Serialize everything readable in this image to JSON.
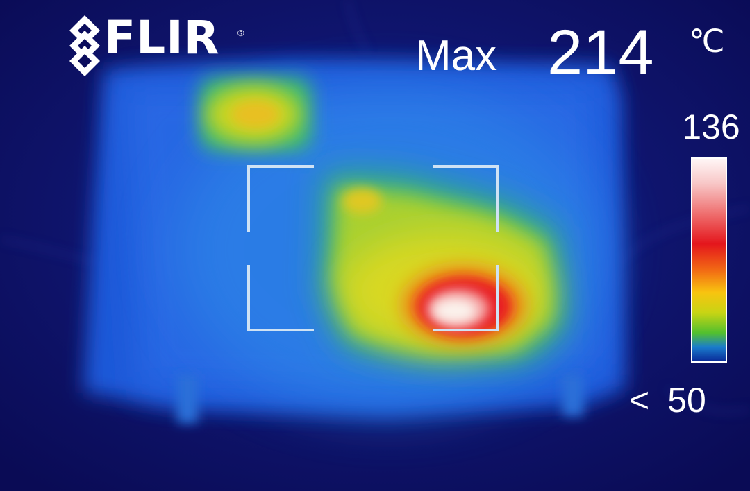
{
  "brand": {
    "name": "FLIR",
    "registered_mark": "®",
    "icon": "flir-diamond-logo-icon"
  },
  "readout": {
    "label": "Max",
    "value": "214",
    "unit": "℃"
  },
  "scale": {
    "top": "136",
    "bottom_prefix": "<",
    "bottom": "50",
    "palette": "iron-rainbow",
    "colors": [
      "#fff6f6",
      "#e4161c",
      "#f26a14",
      "#f8c410",
      "#52c02e",
      "#1a7ccc",
      "#0a2a98"
    ]
  },
  "reticle": {
    "icon": "measurement-box-reticle-icon"
  }
}
